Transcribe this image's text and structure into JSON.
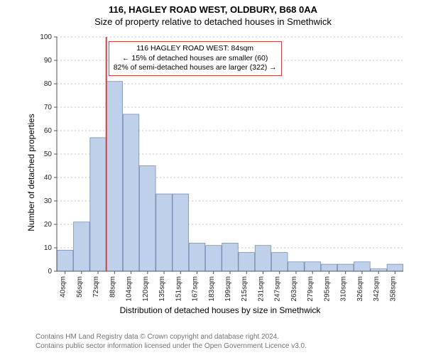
{
  "header": {
    "address": "116, HAGLEY ROAD WEST, OLDBURY, B68 0AA",
    "subtitle": "Size of property relative to detached houses in Smethwick"
  },
  "chart": {
    "type": "histogram",
    "x_categories": [
      "40sqm",
      "56sqm",
      "72sqm",
      "88sqm",
      "104sqm",
      "120sqm",
      "135sqm",
      "151sqm",
      "167sqm",
      "183sqm",
      "199sqm",
      "215sqm",
      "231sqm",
      "247sqm",
      "263sqm",
      "279sqm",
      "295sqm",
      "310sqm",
      "326sqm",
      "342sqm",
      "358sqm"
    ],
    "values": [
      9,
      21,
      57,
      81,
      67,
      45,
      33,
      33,
      12,
      11,
      12,
      8,
      11,
      8,
      4,
      4,
      3,
      3,
      4,
      1,
      3
    ],
    "bar_fill": "#bfd0ea",
    "bar_stroke": "#6e83a8",
    "ylim": [
      0,
      100
    ],
    "ytick_step": 10,
    "grid_color": "#8a8a8a",
    "grid_dash": "2 3",
    "axis_color": "#555555",
    "background": "#ffffff",
    "ylabel": "Number of detached properties",
    "xlabel": "Distribution of detached houses by size in Smethwick",
    "tick_fontsize": 10,
    "label_fontsize": 12,
    "bar_width": 0.97,
    "marker": {
      "category_index": 3,
      "position": "left_edge",
      "color": "#d04040",
      "width": 2
    }
  },
  "annotation": {
    "line1": "116 HAGLEY ROAD WEST: 84sqm",
    "line2": "← 15% of detached houses are smaller (60)",
    "line3": "82% of semi-detached houses are larger (322) →",
    "border_color": "#d04040"
  },
  "license": {
    "line1": "Contains HM Land Registry data © Crown copyright and database right 2024.",
    "line2": "Contains public sector information licensed under the Open Government Licence v3.0."
  }
}
